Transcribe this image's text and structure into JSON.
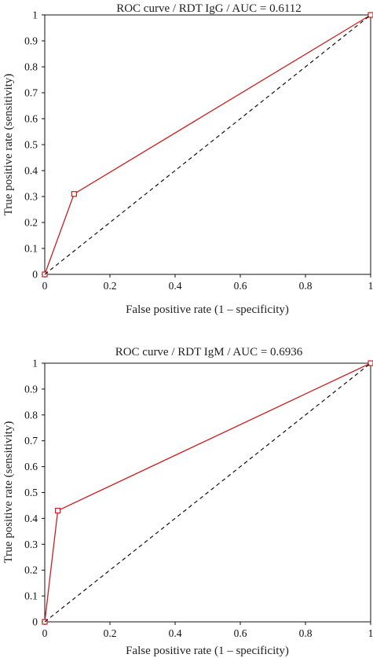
{
  "colors": {
    "roc_line": "#cc1f1f",
    "axis": "#111111",
    "diagonal": "#111111"
  },
  "chart_data": [
    {
      "type": "line",
      "title": "ROC curve / RDT IgG / AUC = 0.6112",
      "xlabel": "False positive rate (1 – specificity)",
      "ylabel": "True positive rate (sensitivity)",
      "xlim": [
        0,
        1
      ],
      "ylim": [
        0,
        1
      ],
      "x_ticks": [
        "0",
        "0.2",
        "0.4",
        "0.6",
        "0.8",
        "1"
      ],
      "y_ticks": [
        "0",
        "0.1",
        "0.2",
        "0.3",
        "0.4",
        "0.5",
        "0.6",
        "0.7",
        "0.8",
        "0.9",
        "1"
      ],
      "series": [
        {
          "x": [
            0,
            0.09,
            1
          ],
          "y": [
            0,
            0.31,
            1
          ],
          "line": "solid",
          "color": "#cc1f1f",
          "markers": "square"
        },
        {
          "x": [
            0,
            1
          ],
          "y": [
            0,
            1
          ],
          "line": "dashed",
          "color": "#111111"
        }
      ]
    },
    {
      "type": "line",
      "title": "ROC curve / RDT IgM / AUC = 0.6936",
      "xlabel": "False positive rate (1 – specificity)",
      "ylabel": "True positive rate (sensitivity)",
      "xlim": [
        0,
        1
      ],
      "ylim": [
        0,
        1
      ],
      "x_ticks": [
        "0",
        "0.2",
        "0.4",
        "0.6",
        "0.8",
        "1"
      ],
      "y_ticks": [
        "0",
        "0.1",
        "0.2",
        "0.3",
        "0.4",
        "0.5",
        "0.6",
        "0.7",
        "0.8",
        "0.9",
        "1"
      ],
      "series": [
        {
          "x": [
            0,
            0.04,
            1
          ],
          "y": [
            0,
            0.43,
            1
          ],
          "line": "solid",
          "color": "#cc1f1f",
          "markers": "square"
        },
        {
          "x": [
            0,
            1
          ],
          "y": [
            0,
            1
          ],
          "line": "dashed",
          "color": "#111111"
        }
      ]
    }
  ]
}
